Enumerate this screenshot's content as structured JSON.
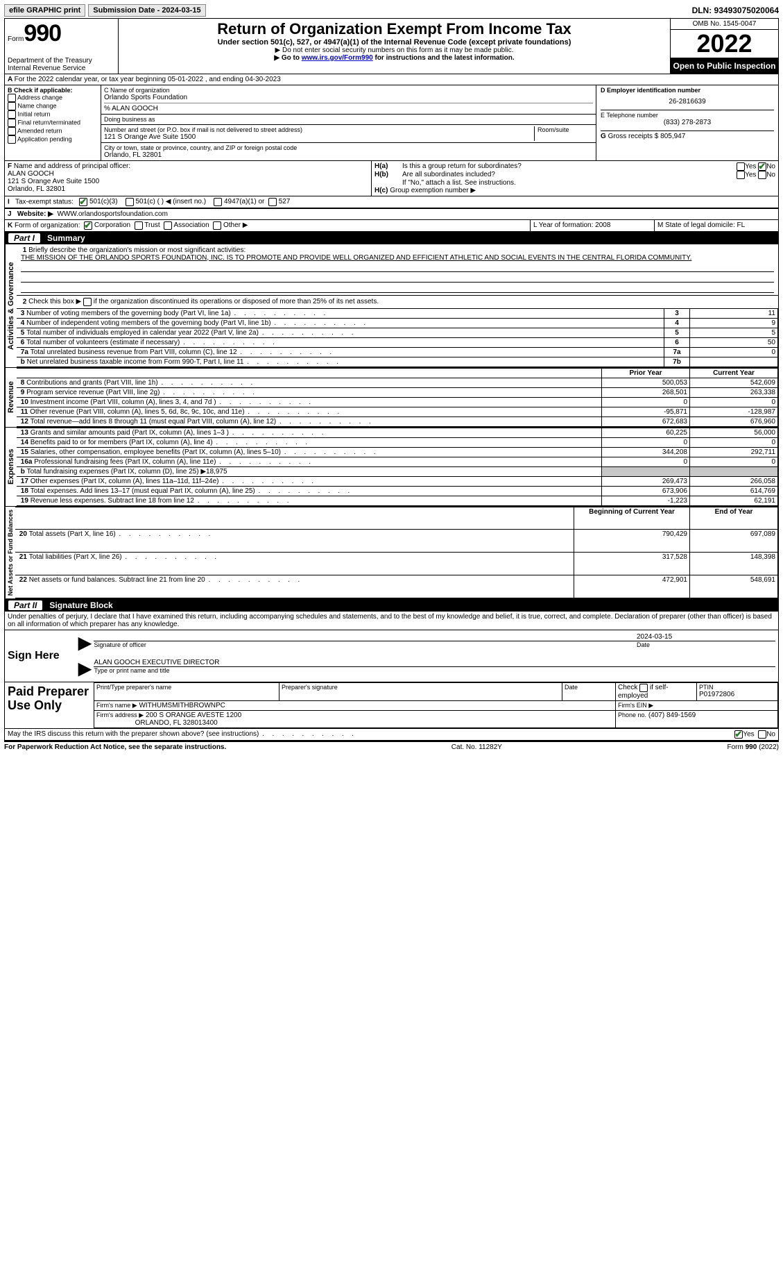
{
  "topbar": {
    "efile": "efile GRAPHIC print",
    "submission": "Submission Date - 2024-03-15",
    "dln": "DLN: 93493075020064"
  },
  "header": {
    "form_prefix": "Form",
    "form_number": "990",
    "dept": "Department of the Treasury",
    "irs": "Internal Revenue Service",
    "title": "Return of Organization Exempt From Income Tax",
    "subtitle": "Under section 501(c), 527, or 4947(a)(1) of the Internal Revenue Code (except private foundations)",
    "note1": "▶ Do not enter social security numbers on this form as it may be made public.",
    "note2_prefix": "▶ Go to ",
    "note2_link": "www.irs.gov/Form990",
    "note2_suffix": " for instructions and the latest information.",
    "omb": "OMB No. 1545-0047",
    "year": "2022",
    "inspection": "Open to Public Inspection"
  },
  "lineA": "For the 2022 calendar year, or tax year beginning 05-01-2022   , and ending 04-30-2023",
  "sectionB": {
    "title": "B Check if applicable:",
    "items": [
      "Address change",
      "Name change",
      "Initial return",
      "Final return/terminated",
      "Amended return",
      "Application pending"
    ]
  },
  "sectionC": {
    "name_label": "C Name of organization",
    "name": "Orlando Sports Foundation",
    "care_of": "% ALAN GOOCH",
    "dba_label": "Doing business as",
    "street_label": "Number and street (or P.O. box if mail is not delivered to street address)",
    "room_label": "Room/suite",
    "street": "121 S Orange Ave Suite 1500",
    "city_label": "City or town, state or province, country, and ZIP or foreign postal code",
    "city": "Orlando, FL  32801"
  },
  "sectionD": {
    "label": "D Employer identification number",
    "value": "26-2816639"
  },
  "sectionE": {
    "label": "E Telephone number",
    "value": "(833) 278-2873"
  },
  "sectionG": {
    "label": "G",
    "text": "Gross receipts $",
    "value": "805,947"
  },
  "sectionF": {
    "label": "F",
    "text": "Name and address of principal officer:",
    "name": "ALAN GOOCH",
    "addr1": "121 S Orange Ave Suite 1500",
    "addr2": "Orlando, FL  32801"
  },
  "sectionH": {
    "a": "Is this a group return for subordinates?",
    "b": "Are all subordinates included?",
    "b_note": "If \"No,\" attach a list. See instructions.",
    "c": "Group exemption number ▶",
    "yes": "Yes",
    "no": "No"
  },
  "sectionI": {
    "label": "I",
    "text": "Tax-exempt status:",
    "o1": "501(c)(3)",
    "o2": "501(c) (  ) ◀ (insert no.)",
    "o3": "4947(a)(1) or",
    "o4": "527"
  },
  "sectionJ": {
    "label": "J",
    "text": "Website: ▶",
    "value": "WWW.orlandosportsfoundation.com"
  },
  "sectionK": {
    "label": "K",
    "text": "Form of organization:",
    "o1": "Corporation",
    "o2": "Trust",
    "o3": "Association",
    "o4": "Other ▶"
  },
  "sectionL": {
    "text": "L Year of formation: 2008"
  },
  "sectionM": {
    "text": "M State of legal domicile: FL"
  },
  "part1": {
    "title": "Summary",
    "label": "Part I",
    "mission_q": "Briefly describe the organization's mission or most significant activities:",
    "mission": "THE MISSION OF THE ORLANDO SPORTS FOUNDATION, INC. IS TO PROMOTE AND PROVIDE WELL ORGANIZED AND EFFICIENT ATHLETIC AND SOCIAL EVENTS IN THE CENTRAL FLORIDA COMMUNITY.",
    "line2": "Check this box ▶        if the organization discontinued its operations or disposed of more than 25% of its net assets.",
    "vlabels": {
      "activities": "Activities & Governance",
      "revenue": "Revenue",
      "expenses": "Expenses",
      "netassets": "Net Assets or Fund Balances"
    },
    "cols": {
      "prior": "Prior Year",
      "current": "Current Year",
      "boy": "Beginning of Current Year",
      "eoy": "End of Year"
    },
    "rows_gov": [
      {
        "n": "3",
        "t": "Number of voting members of the governing body (Part VI, line 1a)",
        "box": "3",
        "v": "11"
      },
      {
        "n": "4",
        "t": "Number of independent voting members of the governing body (Part VI, line 1b)",
        "box": "4",
        "v": "9"
      },
      {
        "n": "5",
        "t": "Total number of individuals employed in calendar year 2022 (Part V, line 2a)",
        "box": "5",
        "v": "5"
      },
      {
        "n": "6",
        "t": "Total number of volunteers (estimate if necessary)",
        "box": "6",
        "v": "50"
      },
      {
        "n": "7a",
        "t": "Total unrelated business revenue from Part VIII, column (C), line 12",
        "box": "7a",
        "v": "0"
      },
      {
        "n": "b",
        "t": "Net unrelated business taxable income from Form 990-T, Part I, line 11",
        "box": "7b",
        "v": ""
      }
    ],
    "rows_rev": [
      {
        "n": "8",
        "t": "Contributions and grants (Part VIII, line 1h)",
        "p": "500,053",
        "c": "542,609"
      },
      {
        "n": "9",
        "t": "Program service revenue (Part VIII, line 2g)",
        "p": "268,501",
        "c": "263,338"
      },
      {
        "n": "10",
        "t": "Investment income (Part VIII, column (A), lines 3, 4, and 7d )",
        "p": "0",
        "c": "0"
      },
      {
        "n": "11",
        "t": "Other revenue (Part VIII, column (A), lines 5, 6d, 8c, 9c, 10c, and 11e)",
        "p": "-95,871",
        "c": "-128,987"
      },
      {
        "n": "12",
        "t": "Total revenue—add lines 8 through 11 (must equal Part VIII, column (A), line 12)",
        "p": "672,683",
        "c": "676,960"
      }
    ],
    "rows_exp": [
      {
        "n": "13",
        "t": "Grants and similar amounts paid (Part IX, column (A), lines 1–3 )",
        "p": "60,225",
        "c": "56,000"
      },
      {
        "n": "14",
        "t": "Benefits paid to or for members (Part IX, column (A), line 4)",
        "p": "0",
        "c": "0"
      },
      {
        "n": "15",
        "t": "Salaries, other compensation, employee benefits (Part IX, column (A), lines 5–10)",
        "p": "344,208",
        "c": "292,711"
      },
      {
        "n": "16a",
        "t": "Professional fundraising fees (Part IX, column (A), line 11e)",
        "p": "0",
        "c": "0"
      },
      {
        "n": "b",
        "t": "Total fundraising expenses (Part IX, column (D), line 25) ▶18,975",
        "shade": true
      },
      {
        "n": "17",
        "t": "Other expenses (Part IX, column (A), lines 11a–11d, 11f–24e)",
        "p": "269,473",
        "c": "266,058"
      },
      {
        "n": "18",
        "t": "Total expenses. Add lines 13–17 (must equal Part IX, column (A), line 25)",
        "p": "673,906",
        "c": "614,769"
      },
      {
        "n": "19",
        "t": "Revenue less expenses. Subtract line 18 from line 12",
        "p": "-1,223",
        "c": "62,191"
      }
    ],
    "rows_net": [
      {
        "n": "20",
        "t": "Total assets (Part X, line 16)",
        "p": "790,429",
        "c": "697,089"
      },
      {
        "n": "21",
        "t": "Total liabilities (Part X, line 26)",
        "p": "317,528",
        "c": "148,398"
      },
      {
        "n": "22",
        "t": "Net assets or fund balances. Subtract line 21 from line 20",
        "p": "472,901",
        "c": "548,691"
      }
    ]
  },
  "part2": {
    "label": "Part II",
    "title": "Signature Block",
    "perjury": "Under penalties of perjury, I declare that I have examined this return, including accompanying schedules and statements, and to the best of my knowledge and belief, it is true, correct, and complete. Declaration of preparer (other than officer) is based on all information of which preparer has any knowledge.",
    "sign_here": "Sign Here",
    "sig_officer": "Signature of officer",
    "sig_date": "2024-03-15",
    "date_label": "Date",
    "name_title": "ALAN GOOCH  EXECUTIVE DIRECTOR",
    "name_title_label": "Type or print name and title",
    "paid": "Paid Preparer Use Only",
    "prep_name_label": "Print/Type preparer's name",
    "prep_sig_label": "Preparer's signature",
    "check_if": "Check          if self-employed",
    "ptin_label": "PTIN",
    "ptin": "P01972806",
    "firm_name_label": "Firm's name    ▶",
    "firm_name": "WITHUMSMITHBROWNPC",
    "firm_ein_label": "Firm's EIN ▶",
    "firm_addr_label": "Firm's address ▶",
    "firm_addr1": "200 S ORANGE AVESTE 1200",
    "firm_addr2": "ORLANDO, FL  328013400",
    "phone_label": "Phone no.",
    "phone": "(407) 849-1569",
    "discuss": "May the IRS discuss this return with the preparer shown above? (see instructions)",
    "yes": "Yes",
    "no": "No"
  },
  "footer": {
    "left": "For Paperwork Reduction Act Notice, see the separate instructions.",
    "mid": "Cat. No. 11282Y",
    "right": "Form 990 (2022)"
  }
}
